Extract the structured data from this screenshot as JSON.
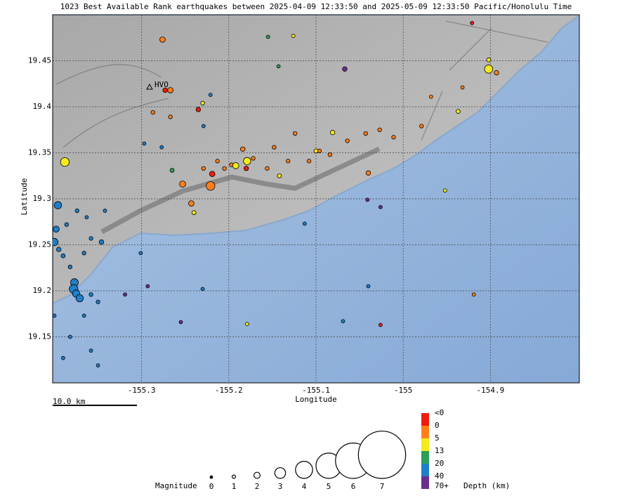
{
  "chart_data": {
    "type": "scatter",
    "title": "1023 Best Available Rank earthquakes between 2025-04-09 12:33:50 and 2025-05-09 12:33:50 Pacific/Honolulu Time",
    "x_label": "Longitude",
    "y_label": "Latitude",
    "xlim": [
      -155.402,
      -154.798
    ],
    "ylim": [
      19.1,
      19.5
    ],
    "xticks": [
      -155.3,
      -155.2,
      -155.1,
      -155,
      -154.9
    ],
    "yticks": [
      19.15,
      19.2,
      19.25,
      19.3,
      19.35,
      19.4,
      19.45
    ],
    "grid": true,
    "annotation": "HVO",
    "scale_bar": "10.0 km",
    "series": [
      {
        "color": "#ee1c10",
        "x": [
          -155.273,
          -155.235,
          -155.219,
          -155.18,
          -155.026,
          -154.921
        ],
        "y": [
          19.418,
          19.397,
          19.327,
          19.333,
          19.163,
          19.491
        ],
        "size": [
          1.5,
          1.5,
          1.8,
          1.5,
          1.0,
          1.0
        ]
      },
      {
        "color": "#ff7f1a",
        "x": [
          -155.276,
          -155.267,
          -155.287,
          -155.267,
          -155.253,
          -155.243,
          -155.221,
          -155.205,
          -155.184,
          -155.156,
          -155.132,
          -155.108,
          -155.084,
          -155.064,
          -155.043,
          -155.027,
          -155.04,
          -155.011,
          -154.979,
          -154.932,
          -154.893,
          -154.968,
          -155.124,
          -155.148,
          -155.229,
          -155.213,
          -155.197,
          -155.172,
          -155.096,
          -154.919
        ],
        "y": [
          19.473,
          19.418,
          19.394,
          19.389,
          19.316,
          19.295,
          19.314,
          19.333,
          19.354,
          19.333,
          19.341,
          19.341,
          19.348,
          19.363,
          19.371,
          19.375,
          19.328,
          19.367,
          19.379,
          19.421,
          19.437,
          19.411,
          19.371,
          19.356,
          19.333,
          19.341,
          19.337,
          19.344,
          19.352,
          19.196
        ],
        "size": [
          1.8,
          1.8,
          1.2,
          1.2,
          2.0,
          1.8,
          2.6,
          1.2,
          1.5,
          1.2,
          1.2,
          1.2,
          1.2,
          1.2,
          1.2,
          1.2,
          1.5,
          1.2,
          1.2,
          1.0,
          1.5,
          1.0,
          1.2,
          1.2,
          1.2,
          1.2,
          1.2,
          1.2,
          1.2,
          1.0
        ]
      },
      {
        "color": "#f5ea1e",
        "x": [
          -155.388,
          -154.902,
          -154.902,
          -154.937,
          -155.179,
          -155.192,
          -155.081,
          -155.1,
          -155.142,
          -155.23,
          -154.952,
          -155.179,
          -155.126,
          -155.24
        ],
        "y": [
          19.34,
          19.441,
          19.451,
          19.395,
          19.341,
          19.336,
          19.372,
          19.352,
          19.325,
          19.404,
          19.309,
          19.164,
          19.477,
          19.285
        ],
        "size": [
          2.6,
          2.5,
          1.3,
          1.3,
          2.3,
          2.0,
          1.5,
          1.3,
          1.3,
          1.2,
          1.0,
          1.0,
          1.0,
          1.3
        ]
      },
      {
        "color": "#2ca05a",
        "x": [
          -155.265,
          -155.155,
          -155.143
        ],
        "y": [
          19.331,
          19.476,
          19.444
        ],
        "size": [
          1.3,
          1.0,
          1.0
        ]
      },
      {
        "color": "#1f7fc8",
        "x": [
          -155.396,
          -155.398,
          -155.4,
          -155.395,
          -155.39,
          -155.377,
          -155.378,
          -155.375,
          -155.371,
          -155.382,
          -155.366,
          -155.358,
          -155.346,
          -155.386,
          -155.374,
          -155.358,
          -155.35,
          -155.366,
          -155.382,
          -155.39,
          -155.358,
          -155.35,
          -155.4,
          -155.221,
          -155.229,
          -155.277,
          -155.297,
          -155.301,
          -155.23,
          -155.04,
          -155.069,
          -155.113,
          -155.363,
          -155.342
        ],
        "y": [
          19.293,
          19.267,
          19.253,
          19.245,
          19.238,
          19.209,
          19.202,
          19.197,
          19.192,
          19.226,
          19.241,
          19.257,
          19.253,
          19.272,
          19.287,
          19.196,
          19.188,
          19.173,
          19.15,
          19.127,
          19.135,
          19.119,
          19.173,
          19.413,
          19.379,
          19.356,
          19.36,
          19.241,
          19.202,
          19.205,
          19.167,
          19.273,
          19.28,
          19.287
        ],
        "size": [
          2.3,
          2.0,
          2.3,
          1.5,
          1.3,
          2.4,
          2.6,
          2.3,
          2.3,
          1.2,
          1.2,
          1.2,
          1.5,
          1.2,
          1.2,
          1.2,
          1.2,
          1.0,
          1.0,
          1.0,
          1.0,
          1.0,
          1.0,
          1.0,
          1.0,
          1.0,
          1.0,
          1.0,
          1.0,
          1.0,
          1.0,
          1.0,
          1.0,
          1.0
        ]
      },
      {
        "color": "#6a2e8c",
        "x": [
          -155.067,
          -155.293,
          -155.319,
          -155.041,
          -155.026,
          -155.255
        ],
        "y": [
          19.441,
          19.205,
          19.196,
          19.299,
          19.291,
          19.166
        ],
        "size": [
          1.5,
          1.0,
          1.0,
          1.0,
          1.0,
          1.0
        ]
      }
    ],
    "size_legend": {
      "title": "Magnitude",
      "values": [
        0,
        1,
        2,
        3,
        4,
        5,
        6,
        7
      ]
    },
    "color_legend": {
      "title": "Depth (km)",
      "labels": [
        "<0",
        "0",
        "5",
        "13",
        "20",
        "40",
        "70+"
      ]
    }
  }
}
